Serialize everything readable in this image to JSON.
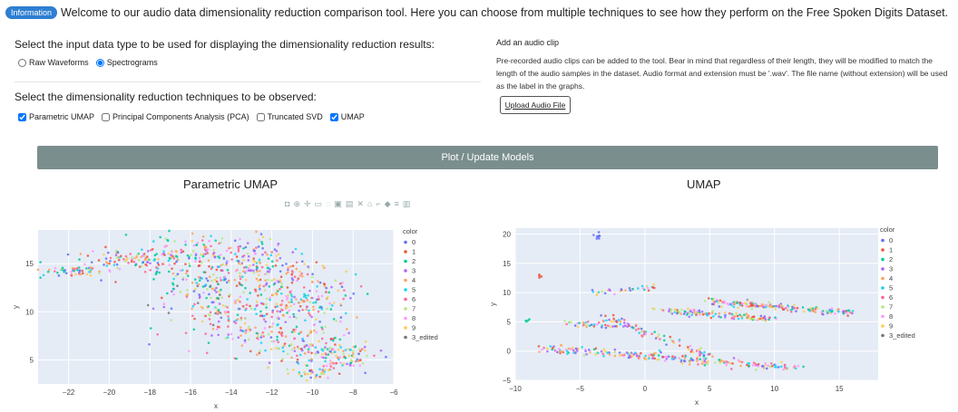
{
  "info": {
    "badge": "Information",
    "message": "Welcome to our audio data dimensionality reduction comparison tool. Here you can choose from multiple techniques to see how they perform on the Free Spoken Digits Dataset."
  },
  "input_type": {
    "heading": "Select the input data type to be used for displaying the dimensionality reduction results:",
    "options": [
      {
        "label": "Raw Waveforms",
        "checked": false
      },
      {
        "label": "Spectrograms",
        "checked": true
      }
    ]
  },
  "techniques": {
    "heading": "Select the dimensionality reduction techniques to be observed:",
    "options": [
      {
        "label": "Parametric UMAP",
        "checked": true
      },
      {
        "label": "Principal Components Analysis (PCA)",
        "checked": false
      },
      {
        "label": "Truncated SVD",
        "checked": false
      },
      {
        "label": "UMAP",
        "checked": true
      }
    ]
  },
  "upload": {
    "title": "Add an audio clip",
    "description": "Pre-recorded audio clips can be added to the tool. Bear in mind that regardless of their length, they will be modified to match the length of the audio samples in the dataset. Audio format and extension must be '.wav'. The file name (without extension) will be used as the label in the graphs.",
    "button": "Upload Audio File"
  },
  "plot_button": "Plot / Update Models",
  "modebar_icons": [
    "camera-icon",
    "zoom-icon",
    "pan-icon",
    "box-select-icon",
    "lasso-icon",
    "zoom-in-icon",
    "zoom-out-icon",
    "autoscale-icon",
    "home-icon",
    "spike-icon",
    "hover-closest-icon",
    "hover-compare-icon",
    "plotly-logo-icon"
  ],
  "legend_colors": [
    "#636efa",
    "#ef553b",
    "#00cc96",
    "#ab63fa",
    "#ffa15a",
    "#19d3f3",
    "#ff6692",
    "#b6e880",
    "#ff97ff",
    "#fecb52",
    "#777777"
  ],
  "chart_data": [
    {
      "type": "scatter",
      "title": "Parametric UMAP",
      "xlabel": "x",
      "ylabel": "y",
      "xlim": [
        -23.5,
        -6
      ],
      "ylim": [
        2.5,
        18.5
      ],
      "xticks": [
        "−22",
        "−20",
        "−18",
        "−16",
        "−14",
        "−12",
        "−10",
        "−8",
        "−6"
      ],
      "xtick_values": [
        -22,
        -20,
        -18,
        -16,
        -14,
        -12,
        -10,
        -8,
        -6
      ],
      "yticks": [
        "5",
        "10",
        "15"
      ],
      "ytick_values": [
        5,
        10,
        15
      ],
      "legend_title": "color",
      "legend": [
        "0",
        "1",
        "2",
        "3",
        "4",
        "5",
        "6",
        "7",
        "8",
        "9",
        "3_edited"
      ],
      "clusters": [
        {
          "cx": -21.5,
          "cy": 14.3,
          "sx": 1.0,
          "sy": 0.5,
          "n": 60
        },
        {
          "cx": -18.8,
          "cy": 15.6,
          "sx": 1.0,
          "sy": 0.6,
          "n": 80
        },
        {
          "cx": -16.0,
          "cy": 15.8,
          "sx": 1.4,
          "sy": 1.3,
          "n": 120
        },
        {
          "cx": -13.5,
          "cy": 15.2,
          "sx": 1.4,
          "sy": 1.4,
          "n": 120
        },
        {
          "cx": -11.5,
          "cy": 13.5,
          "sx": 1.2,
          "sy": 1.4,
          "n": 100
        },
        {
          "cx": -10.0,
          "cy": 11.0,
          "sx": 1.0,
          "sy": 1.4,
          "n": 100
        },
        {
          "cx": -13.5,
          "cy": 9.5,
          "sx": 1.6,
          "sy": 1.6,
          "n": 130
        },
        {
          "cx": -11.0,
          "cy": 7.0,
          "sx": 1.3,
          "sy": 1.2,
          "n": 130
        },
        {
          "cx": -8.5,
          "cy": 5.2,
          "sx": 0.8,
          "sy": 0.8,
          "n": 90
        },
        {
          "cx": -10.0,
          "cy": 3.6,
          "sx": 0.6,
          "sy": 0.4,
          "n": 35
        },
        {
          "cx": -15.0,
          "cy": 12.0,
          "sx": 1.4,
          "sy": 1.6,
          "n": 100
        }
      ]
    },
    {
      "type": "scatter",
      "title": "UMAP",
      "xlabel": "x",
      "ylabel": "y",
      "xlim": [
        -10,
        18
      ],
      "ylim": [
        -5,
        21
      ],
      "xticks": [
        "−10",
        "−5",
        "0",
        "5",
        "10",
        "15"
      ],
      "xtick_values": [
        -10,
        -5,
        0,
        5,
        10,
        15
      ],
      "yticks": [
        "−5",
        "0",
        "5",
        "10",
        "15",
        "20"
      ],
      "ytick_values": [
        -5,
        0,
        5,
        10,
        15,
        20
      ],
      "legend_title": "color",
      "legend": [
        "0",
        "1",
        "2",
        "3",
        "4",
        "5",
        "6",
        "7",
        "8",
        "9",
        "3_edited"
      ],
      "strands": [
        {
          "x0": -8,
          "y0": 0.5,
          "x1": 12,
          "y1": -3,
          "n": 220,
          "spread": 0.6
        },
        {
          "x0": -3,
          "y0": 6,
          "x1": 5,
          "y1": -1,
          "n": 80,
          "spread": 0.6
        },
        {
          "x0": 5,
          "y0": 8.5,
          "x1": 16,
          "y1": 6.5,
          "n": 170,
          "spread": 0.5
        },
        {
          "x0": 1,
          "y0": 7,
          "x1": 10,
          "y1": 5.5,
          "n": 120,
          "spread": 0.5
        },
        {
          "x0": -4,
          "y0": 10,
          "x1": 1,
          "y1": 11,
          "n": 30,
          "spread": 0.4
        },
        {
          "x0": -6,
          "y0": 5,
          "x1": -2,
          "y1": 4,
          "n": 30,
          "spread": 0.5
        }
      ],
      "outliers": [
        {
          "x": -3.7,
          "y": 19.5,
          "n": 8
        },
        {
          "x": -8,
          "y": 12.8,
          "n": 4
        },
        {
          "x": -9,
          "y": 5.2,
          "n": 4
        },
        {
          "x": -1.5,
          "y": 4.5,
          "n": 4
        }
      ]
    }
  ]
}
